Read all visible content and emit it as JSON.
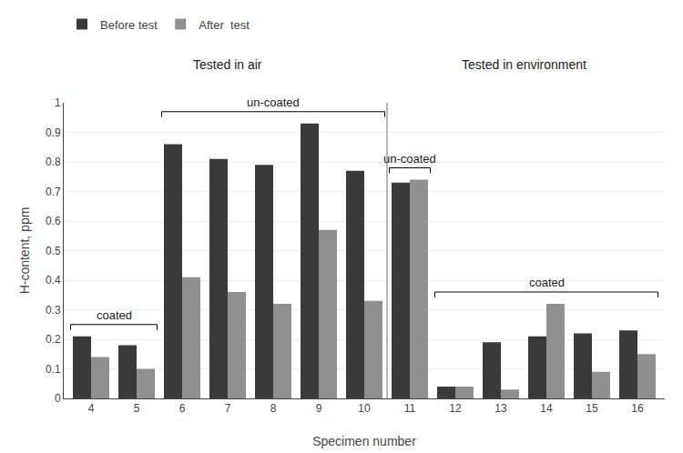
{
  "chart_data": {
    "type": "bar",
    "categories": [
      "4",
      "5",
      "6",
      "7",
      "8",
      "9",
      "10",
      "11",
      "12",
      "13",
      "14",
      "15",
      "16"
    ],
    "series": [
      {
        "name": "Before test",
        "color": "#3a3a3a",
        "values": [
          0.21,
          0.18,
          0.86,
          0.81,
          0.79,
          0.93,
          0.77,
          0.73,
          0.04,
          0.19,
          0.21,
          0.22,
          0.23
        ]
      },
      {
        "name": "After  test",
        "color": "#909090",
        "values": [
          0.14,
          0.1,
          0.41,
          0.36,
          0.32,
          0.57,
          0.33,
          0.74,
          0.04,
          0.03,
          0.32,
          0.09,
          0.15
        ]
      }
    ],
    "xlabel": "Specimen number",
    "ylabel": "H-content, ppm",
    "ylim": [
      0,
      1.0
    ],
    "yticks": [
      0,
      0.1,
      0.2,
      0.3,
      0.4,
      0.5,
      0.6,
      0.7,
      0.8,
      0.9,
      1
    ],
    "grid": true,
    "legend": "top",
    "annotations": [
      {
        "text": "coated",
        "categories": [
          "4",
          "5"
        ]
      },
      {
        "text": "un-coated",
        "categories": [
          "6",
          "7",
          "8",
          "9",
          "10"
        ]
      },
      {
        "text": "un-coated",
        "categories": [
          "11"
        ]
      },
      {
        "text": "coated",
        "categories": [
          "12",
          "13",
          "14",
          "15",
          "16"
        ]
      }
    ],
    "groups": [
      {
        "text": "Tested in air",
        "categories": [
          "4",
          "5",
          "6",
          "7",
          "8",
          "9",
          "10"
        ]
      },
      {
        "text": "Tested in environment",
        "categories": [
          "11",
          "12",
          "13",
          "14",
          "15",
          "16"
        ]
      }
    ]
  }
}
